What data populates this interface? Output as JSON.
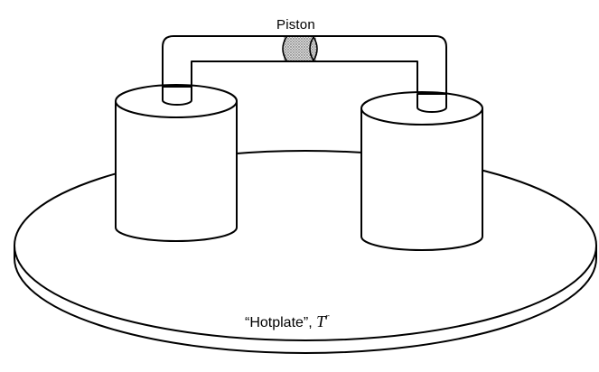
{
  "diagram": {
    "piston_label": "Piston",
    "hotplate_label": "“Hotplate”, ",
    "temperature_symbol": "T",
    "temperature_superscript": "r"
  }
}
